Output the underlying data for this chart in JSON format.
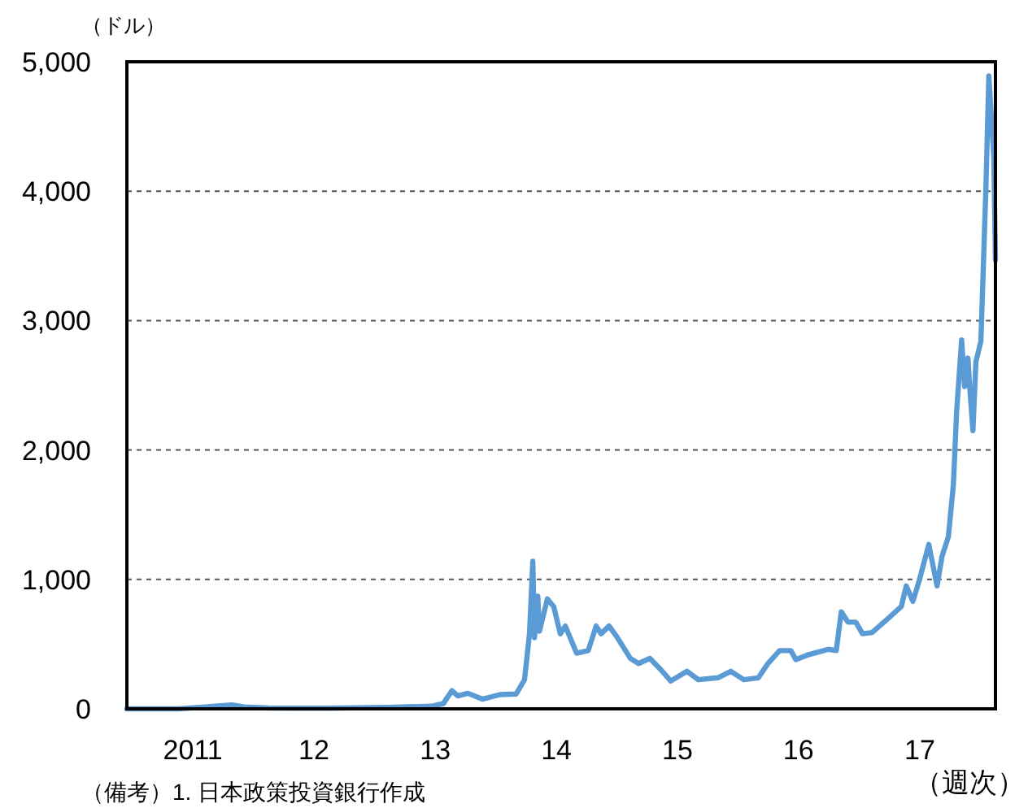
{
  "chart_data": {
    "type": "line",
    "ylabel": "（ドル）",
    "xlabel": "（週次）",
    "annotations": [
      "（備考）1. 日本政策投資銀行作成"
    ],
    "xlim": [
      "2010-07-17",
      "2017-09-17"
    ],
    "ylim": [
      0,
      5000
    ],
    "xticks": [
      {
        "value": "2011-02-01",
        "label": "2011"
      },
      {
        "value": "2012-02-01",
        "label": "12"
      },
      {
        "value": "2013-02-01",
        "label": "13"
      },
      {
        "value": "2014-02-01",
        "label": "14"
      },
      {
        "value": "2015-02-01",
        "label": "15"
      },
      {
        "value": "2016-02-01",
        "label": "16"
      },
      {
        "value": "2017-02-01",
        "label": "17"
      }
    ],
    "yticks": [
      0,
      {
        "value": 1000,
        "label": "1,000"
      },
      {
        "value": 2000,
        "label": "2,000"
      },
      {
        "value": 3000,
        "label": "3,000"
      },
      {
        "value": 4000,
        "label": "4,000"
      },
      {
        "value": 5000,
        "label": "5,000"
      }
    ],
    "grid": "y",
    "line_style": "solid",
    "series": [
      {
        "color": "#5b9bd5",
        "x": [
          "2010-07-17",
          "2010-12-20",
          "2011-05-30",
          "2011-07-05",
          "2011-09-17",
          "2012-03-06",
          "2012-09-16",
          "2013-01-19",
          "2013-02-25",
          "2013-03-23",
          "2013-04-10",
          "2013-05-10",
          "2013-06-23",
          "2013-08-15",
          "2013-10-03",
          "2013-10-28",
          "2013-11-12",
          "2013-11-22",
          "2013-11-27",
          "2013-12-07",
          "2013-12-12",
          "2014-01-05",
          "2014-01-24",
          "2014-02-13",
          "2014-02-28",
          "2014-04-03",
          "2014-05-08",
          "2014-06-01",
          "2014-06-16",
          "2014-07-10",
          "2014-08-04",
          "2014-09-12",
          "2014-10-07",
          "2014-11-10",
          "2014-12-14",
          "2015-01-12",
          "2015-03-02",
          "2015-04-05",
          "2015-06-03",
          "2015-07-12",
          "2015-08-20",
          "2015-10-03",
          "2015-11-01",
          "2015-12-06",
          "2016-01-09",
          "2016-01-24",
          "2016-02-27",
          "2016-05-01",
          "2016-05-25",
          "2016-06-09",
          "2016-06-29",
          "2016-07-23",
          "2016-08-12",
          "2016-09-10",
          "2016-10-29",
          "2016-12-07",
          "2016-12-22",
          "2017-01-11",
          "2017-01-30",
          "2017-02-28",
          "2017-03-25",
          "2017-04-09",
          "2017-04-28",
          "2017-05-13",
          "2017-05-23",
          "2017-06-07",
          "2017-06-16",
          "2017-06-26",
          "2017-07-01",
          "2017-07-11",
          "2017-07-20",
          "2017-08-04",
          "2017-08-19",
          "2017-08-28",
          "2017-09-12",
          "2017-09-17"
        ],
        "values": [
          0,
          0,
          30,
          15,
          6,
          5,
          12,
          20,
          40,
          140,
          100,
          120,
          75,
          110,
          115,
          225,
          580,
          1140,
          550,
          870,
          600,
          850,
          790,
          580,
          640,
          430,
          450,
          640,
          580,
          640,
          550,
          390,
          350,
          390,
          300,
          215,
          290,
          225,
          240,
          290,
          225,
          240,
          350,
          450,
          450,
          380,
          415,
          460,
          450,
          750,
          670,
          670,
          580,
          590,
          700,
          790,
          950,
          830,
          990,
          1270,
          950,
          1180,
          1330,
          1730,
          2300,
          2850,
          2490,
          2710,
          2500,
          2150,
          2680,
          2840,
          4010,
          4890,
          4260,
          3470
        ]
      }
    ]
  }
}
